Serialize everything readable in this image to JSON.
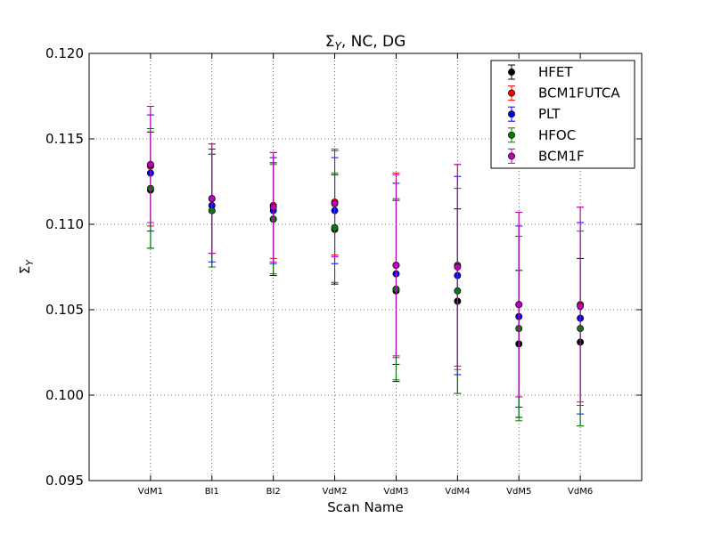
{
  "chart_data": {
    "type": "scatter",
    "title": "ΣY, NC, DG",
    "title_parts": {
      "symbol": "Σ",
      "subscript": "Y",
      "rest": ", NC, DG"
    },
    "xlabel": "Scan Name",
    "ylabel": "ΣY",
    "ylabel_parts": {
      "symbol": "Σ",
      "subscript": "Y"
    },
    "ylim": [
      0.095,
      0.12
    ],
    "yticks": [
      0.095,
      0.1,
      0.105,
      0.11,
      0.115,
      0.12
    ],
    "ytick_labels": [
      "0.095",
      "0.100",
      "0.105",
      "0.110",
      "0.115",
      "0.120"
    ],
    "categories": [
      "VdM1",
      "BI1",
      "BI2",
      "VdM2",
      "VdM3",
      "VdM4",
      "VdM5",
      "VdM6"
    ],
    "grid": true,
    "legend_position": "top-right",
    "series": [
      {
        "name": "HFET",
        "color": "#000000",
        "values": [
          0.112,
          0.1108,
          0.1103,
          0.1097,
          0.1061,
          0.1055,
          0.103,
          0.1031
        ],
        "errors": [
          0.0034,
          0.0033,
          0.0033,
          0.0032,
          0.0053,
          0.0054,
          0.0043,
          0.0049
        ]
      },
      {
        "name": "BCM1FUTCA",
        "color": "#ff0000",
        "values": [
          0.1134,
          0.1115,
          0.1111,
          0.1113,
          0.1076,
          0.1076,
          0.1053,
          0.1053
        ],
        "errors": [
          0.0035,
          0.0032,
          0.0031,
          0.0031,
          0.0054,
          0.0059,
          0.0054,
          0.0057
        ]
      },
      {
        "name": "PLT",
        "color": "#0000ff",
        "values": [
          0.113,
          0.1111,
          0.1108,
          0.1108,
          0.1071,
          0.107,
          0.1046,
          0.1045
        ],
        "errors": [
          0.0034,
          0.0033,
          0.0031,
          0.0031,
          0.0053,
          0.0058,
          0.0053,
          0.0056
        ]
      },
      {
        "name": "HFOC",
        "color": "#008000",
        "values": [
          0.1121,
          0.1108,
          0.1103,
          0.1098,
          0.1062,
          0.1061,
          0.1039,
          0.1039
        ],
        "errors": [
          0.0035,
          0.0033,
          0.0032,
          0.0032,
          0.0053,
          0.006,
          0.0054,
          0.0057
        ]
      },
      {
        "name": "BCM1F",
        "color": "#bf00bf",
        "values": [
          0.1135,
          0.1115,
          0.111,
          0.1112,
          0.1076,
          0.1075,
          0.1053,
          0.1052
        ],
        "errors": [
          0.0034,
          0.0032,
          0.0032,
          0.0031,
          0.0053,
          0.006,
          0.0054,
          0.0058
        ]
      }
    ]
  }
}
